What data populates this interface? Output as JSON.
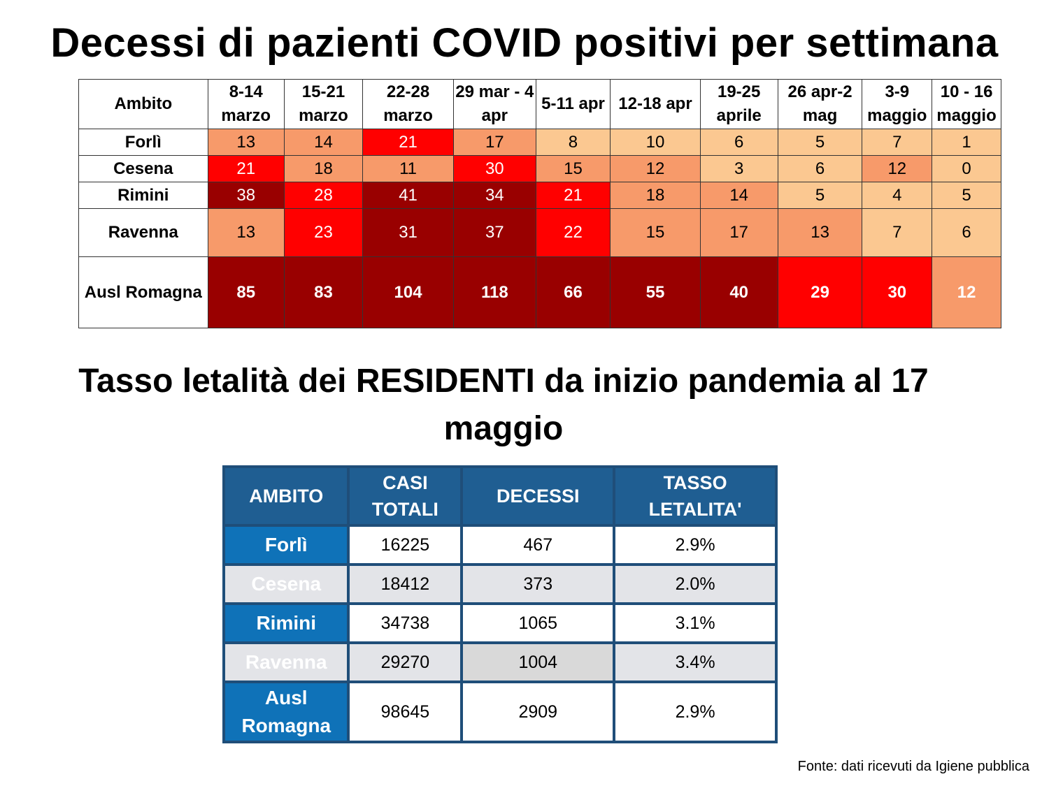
{
  "title": "Decessi di pazienti COVID positivi per settimana",
  "weekly": {
    "header": [
      "Ambito",
      "8-14 marzo",
      "15-21 marzo",
      "22-28 marzo",
      "29 mar - 4 apr",
      "5-11 apr",
      "12-18 apr",
      "19-25 aprile",
      "26 apr-2 mag",
      "3-9 maggio",
      "10 - 16 maggio"
    ],
    "level_colors": [
      "#fbc891",
      "#f79a6a",
      "#ff0000",
      "#990000"
    ],
    "rows": [
      {
        "name": "Forlì",
        "values": [
          13,
          14,
          21,
          17,
          8,
          10,
          6,
          5,
          7,
          1
        ],
        "levels": [
          1,
          1,
          2,
          1,
          0,
          0,
          0,
          0,
          0,
          0
        ]
      },
      {
        "name": "Cesena",
        "values": [
          21,
          18,
          11,
          30,
          15,
          12,
          3,
          6,
          12,
          0
        ],
        "levels": [
          2,
          1,
          1,
          2,
          1,
          1,
          0,
          0,
          1,
          0
        ]
      },
      {
        "name": "Rimini",
        "values": [
          38,
          28,
          41,
          34,
          21,
          18,
          14,
          5,
          4,
          5
        ],
        "levels": [
          3,
          2,
          3,
          3,
          2,
          1,
          1,
          0,
          0,
          0
        ]
      },
      {
        "name": "Ravenna",
        "values": [
          13,
          23,
          31,
          37,
          22,
          15,
          17,
          13,
          7,
          6
        ],
        "levels": [
          1,
          2,
          3,
          3,
          2,
          1,
          1,
          1,
          0,
          0
        ]
      },
      {
        "name": "Ausl Romagna",
        "values": [
          85,
          83,
          104,
          118,
          66,
          55,
          40,
          29,
          30,
          12
        ],
        "levels": [
          3,
          3,
          3,
          3,
          3,
          3,
          3,
          2,
          2,
          1
        ]
      }
    ]
  },
  "subtitle": "Tasso letalità dei RESIDENTI da inizio pandemia al 17 maggio",
  "rates": {
    "header": [
      "AMBITO",
      "CASI TOTALI",
      "DECESSI",
      "TASSO LETALITA'"
    ],
    "rows": [
      [
        "Forlì",
        "16225",
        "467",
        "2.9%"
      ],
      [
        "Cesena",
        "18412",
        "373",
        "2.0%"
      ],
      [
        "Rimini",
        "34738",
        "1065",
        "3.1%"
      ],
      [
        "Ravenna",
        "29270",
        "1004",
        "3.4%"
      ],
      [
        "Ausl Romagna",
        "98645",
        "2909",
        "2.9%"
      ]
    ]
  },
  "source": "Fonte: dati ricevuti da Igiene pubblica"
}
